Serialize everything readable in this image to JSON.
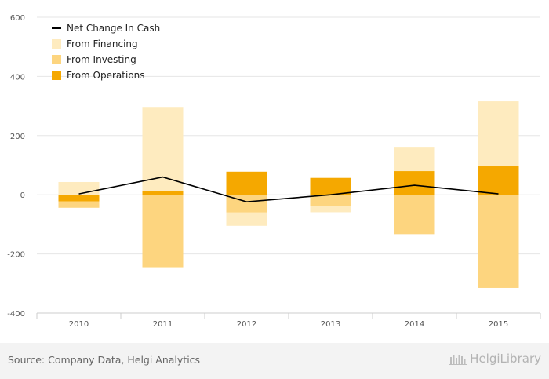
{
  "chart_data": {
    "type": "bar",
    "stacked": true,
    "categories": [
      "2010",
      "2011",
      "2012",
      "2013",
      "2014",
      "2015"
    ],
    "y_ticks": [
      600,
      400,
      200,
      0,
      -200,
      -400
    ],
    "ylim": [
      -400,
      600
    ],
    "grid": true,
    "legend_position": "top-left",
    "series": [
      {
        "name": "From Operations",
        "kind": "bar",
        "color": "#f5a800",
        "values": [
          -22,
          12,
          78,
          57,
          80,
          96
        ]
      },
      {
        "name": "From Investing",
        "kind": "bar",
        "color": "#fdd57f",
        "values": [
          -22,
          -245,
          -60,
          -37,
          -133,
          -315
        ]
      },
      {
        "name": "From Financing",
        "kind": "bar",
        "color": "#feebbf",
        "values": [
          43,
          285,
          -45,
          -22,
          82,
          220
        ]
      },
      {
        "name": "Net Change In Cash",
        "kind": "line",
        "color": "#000000",
        "values": [
          3,
          60,
          -24,
          0,
          32,
          3
        ]
      }
    ],
    "legend_order": [
      "Net Change In Cash",
      "From Financing",
      "From Investing",
      "From Operations"
    ]
  },
  "footer": {
    "source": "Source: Company Data, Helgi Analytics",
    "logo_text": "HelgiLibrary"
  }
}
